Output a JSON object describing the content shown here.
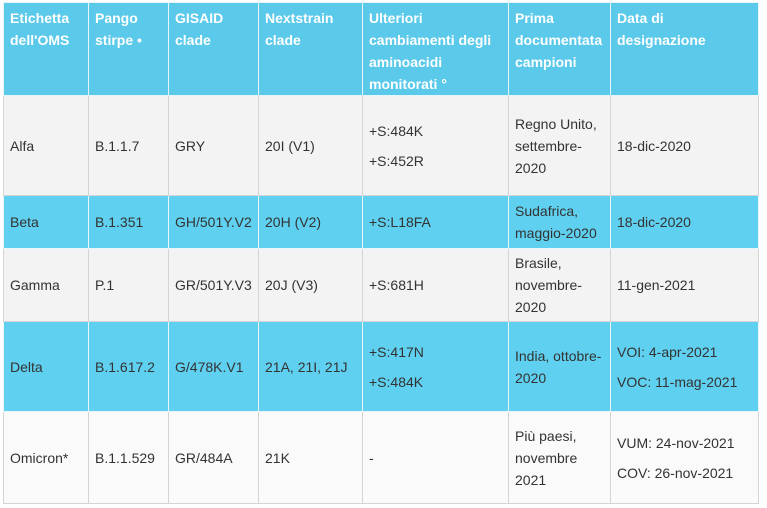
{
  "table": {
    "header": [
      "Etichetta dell'OMS",
      "Pango stirpe •",
      "GISAID clade",
      "Nextstrain clade",
      "Ulteriori cambiamenti degli aminoacidi monitorati °",
      "Prima documentata campioni",
      "Data di designazione"
    ],
    "rows": [
      [
        "Alfa",
        "B.1.1.7",
        "GRY",
        "20I (V1)",
        [
          "+S:484K",
          "+S:452R"
        ],
        "Regno Unito, settembre-2020",
        [
          "18-dic-2020"
        ]
      ],
      [
        "Beta",
        "B.1.351",
        "GH/501Y.V2",
        "20H (V2)",
        [
          "+S:L18FA"
        ],
        "Sudafrica, maggio-2020",
        [
          "18-dic-2020"
        ]
      ],
      [
        "Gamma",
        "P.1",
        "GR/501Y.V3",
        "20J (V3)",
        [
          "+S:681H"
        ],
        "Brasile, novembre-2020",
        [
          "11-gen-2021"
        ]
      ],
      [
        "Delta",
        "B.1.617.2",
        "G/478K.V1",
        "21A, 21I, 21J",
        [
          "+S:417N",
          "+S:484K"
        ],
        "India, ottobre-2020",
        [
          "VOI: 4-apr-2021",
          "VOC: 11-mag-2021"
        ]
      ],
      [
        "Omicron*",
        "B.1.1.529",
        "GR/484A",
        "21K",
        [
          "-"
        ],
        "Più paesi, novembre 2021",
        [
          "VUM: 24-nov-2021",
          "COV: 26-nov-2021"
        ]
      ]
    ]
  }
}
